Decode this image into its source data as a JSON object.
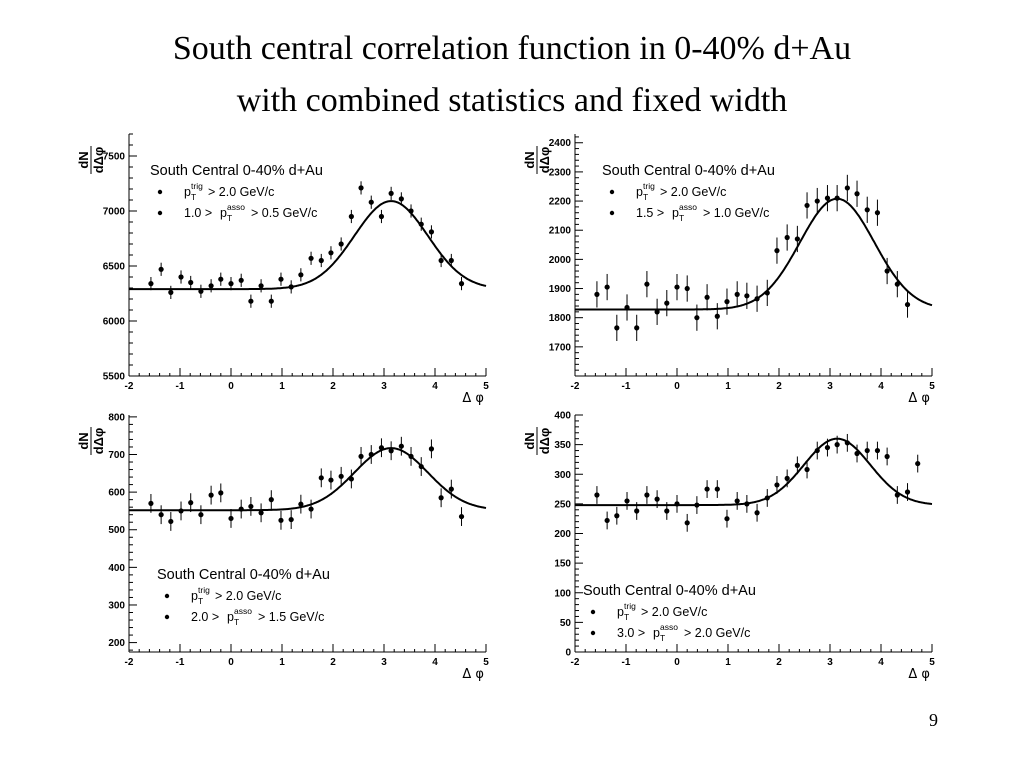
{
  "slide": {
    "title_line1": "South central correlation function in 0-40% d+Au",
    "title_line2": "with combined statistics and fixed width",
    "page_number": "9"
  },
  "chart_data": [
    {
      "type": "scatter",
      "fit": "gaussian",
      "legend": {
        "title": "South Central 0-40% d+Au",
        "entry1": {
          "p": "p",
          "sup": "trig",
          "sub": "T",
          "text": "> 2.0 GeV/c"
        },
        "entry2": {
          "prefix": "1.0 > ",
          "p": "p",
          "sup": "asso",
          "sub": "T",
          "text": "> 0.5 GeV/c"
        },
        "placement": "top-left"
      },
      "xlabel": "Δ φ",
      "ylabel_num": "dN",
      "ylabel_den": "dΔφ",
      "xlim": [
        -2,
        5
      ],
      "ylim": [
        5500,
        7700
      ],
      "x_ticks": [
        -2,
        -1,
        0,
        1,
        2,
        3,
        4,
        5
      ],
      "y_ticks": [
        5500,
        6000,
        6500,
        7000,
        7500
      ],
      "fit_params": {
        "baseline": 6290,
        "amplitude": 800,
        "center": 3.14,
        "sigma": 0.72
      },
      "points": [
        {
          "x": -1.57,
          "y": 6340,
          "err": 60
        },
        {
          "x": -1.37,
          "y": 6470,
          "err": 60
        },
        {
          "x": -1.18,
          "y": 6260,
          "err": 60
        },
        {
          "x": -0.98,
          "y": 6400,
          "err": 60
        },
        {
          "x": -0.79,
          "y": 6350,
          "err": 60
        },
        {
          "x": -0.59,
          "y": 6270,
          "err": 60
        },
        {
          "x": -0.39,
          "y": 6320,
          "err": 60
        },
        {
          "x": -0.2,
          "y": 6380,
          "err": 60
        },
        {
          "x": 0.0,
          "y": 6340,
          "err": 60
        },
        {
          "x": 0.2,
          "y": 6370,
          "err": 60
        },
        {
          "x": 0.39,
          "y": 6180,
          "err": 60
        },
        {
          "x": 0.59,
          "y": 6320,
          "err": 60
        },
        {
          "x": 0.79,
          "y": 6180,
          "err": 60
        },
        {
          "x": 0.98,
          "y": 6380,
          "err": 60
        },
        {
          "x": 1.18,
          "y": 6310,
          "err": 60
        },
        {
          "x": 1.37,
          "y": 6420,
          "err": 60
        },
        {
          "x": 1.57,
          "y": 6570,
          "err": 60
        },
        {
          "x": 1.77,
          "y": 6550,
          "err": 60
        },
        {
          "x": 1.96,
          "y": 6620,
          "err": 60
        },
        {
          "x": 2.16,
          "y": 6700,
          "err": 60
        },
        {
          "x": 2.36,
          "y": 6950,
          "err": 60
        },
        {
          "x": 2.55,
          "y": 7210,
          "err": 60
        },
        {
          "x": 2.75,
          "y": 7080,
          "err": 60
        },
        {
          "x": 2.95,
          "y": 6950,
          "err": 60
        },
        {
          "x": 3.14,
          "y": 7160,
          "err": 60
        },
        {
          "x": 3.34,
          "y": 7110,
          "err": 60
        },
        {
          "x": 3.53,
          "y": 7000,
          "err": 60
        },
        {
          "x": 3.73,
          "y": 6880,
          "err": 60
        },
        {
          "x": 3.93,
          "y": 6810,
          "err": 60
        },
        {
          "x": 4.12,
          "y": 6550,
          "err": 60
        },
        {
          "x": 4.32,
          "y": 6550,
          "err": 60
        },
        {
          "x": 4.52,
          "y": 6340,
          "err": 60
        }
      ]
    },
    {
      "type": "scatter",
      "fit": "gaussian",
      "legend": {
        "title": "South Central 0-40% d+Au",
        "entry1": {
          "p": "p",
          "sup": "trig",
          "sub": "T",
          "text": "> 2.0 GeV/c"
        },
        "entry2": {
          "prefix": "1.5 > ",
          "p": "p",
          "sup": "asso",
          "sub": "T",
          "text": "> 1.0 GeV/c"
        },
        "placement": "top-left"
      },
      "xlabel": "Δ φ",
      "ylabel_num": "dN",
      "ylabel_den": "dΔφ",
      "xlim": [
        -2,
        5
      ],
      "ylim": [
        1600,
        2430
      ],
      "x_ticks": [
        -2,
        -1,
        0,
        1,
        2,
        3,
        4,
        5
      ],
      "y_ticks": [
        1700,
        1800,
        1900,
        2000,
        2100,
        2200,
        2300,
        2400
      ],
      "fit_params": {
        "baseline": 1828,
        "amplitude": 380,
        "center": 3.14,
        "sigma": 0.73
      },
      "points": [
        {
          "x": -1.57,
          "y": 1880,
          "err": 45
        },
        {
          "x": -1.37,
          "y": 1905,
          "err": 45
        },
        {
          "x": -1.18,
          "y": 1765,
          "err": 45
        },
        {
          "x": -0.98,
          "y": 1835,
          "err": 45
        },
        {
          "x": -0.79,
          "y": 1765,
          "err": 45
        },
        {
          "x": -0.59,
          "y": 1915,
          "err": 45
        },
        {
          "x": -0.39,
          "y": 1820,
          "err": 45
        },
        {
          "x": -0.2,
          "y": 1850,
          "err": 45
        },
        {
          "x": 0.0,
          "y": 1905,
          "err": 45
        },
        {
          "x": 0.2,
          "y": 1900,
          "err": 45
        },
        {
          "x": 0.39,
          "y": 1800,
          "err": 45
        },
        {
          "x": 0.59,
          "y": 1870,
          "err": 45
        },
        {
          "x": 0.79,
          "y": 1805,
          "err": 45
        },
        {
          "x": 0.98,
          "y": 1855,
          "err": 45
        },
        {
          "x": 1.18,
          "y": 1880,
          "err": 45
        },
        {
          "x": 1.37,
          "y": 1875,
          "err": 45
        },
        {
          "x": 1.57,
          "y": 1865,
          "err": 45
        },
        {
          "x": 1.77,
          "y": 1885,
          "err": 45
        },
        {
          "x": 1.96,
          "y": 2030,
          "err": 45
        },
        {
          "x": 2.16,
          "y": 2075,
          "err": 45
        },
        {
          "x": 2.36,
          "y": 2070,
          "err": 45
        },
        {
          "x": 2.55,
          "y": 2185,
          "err": 45
        },
        {
          "x": 2.75,
          "y": 2200,
          "err": 45
        },
        {
          "x": 2.95,
          "y": 2210,
          "err": 45
        },
        {
          "x": 3.14,
          "y": 2210,
          "err": 45
        },
        {
          "x": 3.34,
          "y": 2245,
          "err": 45
        },
        {
          "x": 3.53,
          "y": 2225,
          "err": 45
        },
        {
          "x": 3.73,
          "y": 2170,
          "err": 45
        },
        {
          "x": 3.93,
          "y": 2160,
          "err": 45
        },
        {
          "x": 4.12,
          "y": 1960,
          "err": 45
        },
        {
          "x": 4.32,
          "y": 1915,
          "err": 45
        },
        {
          "x": 4.52,
          "y": 1845,
          "err": 45
        }
      ]
    },
    {
      "type": "scatter",
      "fit": "gaussian",
      "legend": {
        "title": "South Central 0-40% d+Au",
        "entry1": {
          "p": "p",
          "sup": "trig",
          "sub": "T",
          "text": "> 2.0 GeV/c"
        },
        "entry2": {
          "prefix": "2.0 > ",
          "p": "p",
          "sup": "asso",
          "sub": "T",
          "text": "> 1.5 GeV/c"
        },
        "placement": "bottom-left"
      },
      "xlabel": "Δ φ",
      "ylabel_num": "dN",
      "ylabel_den": "dΔφ",
      "xlim": [
        -2,
        5
      ],
      "ylim": [
        175,
        805
      ],
      "x_ticks": [
        -2,
        -1,
        0,
        1,
        2,
        3,
        4,
        5
      ],
      "y_ticks": [
        200,
        300,
        400,
        500,
        600,
        700,
        800
      ],
      "fit_params": {
        "baseline": 552,
        "amplitude": 165,
        "center": 3.14,
        "sigma": 0.72
      },
      "points": [
        {
          "x": -1.57,
          "y": 570,
          "err": 25
        },
        {
          "x": -1.37,
          "y": 540,
          "err": 25
        },
        {
          "x": -1.18,
          "y": 522,
          "err": 25
        },
        {
          "x": -0.98,
          "y": 550,
          "err": 25
        },
        {
          "x": -0.79,
          "y": 572,
          "err": 25
        },
        {
          "x": -0.59,
          "y": 540,
          "err": 25
        },
        {
          "x": -0.39,
          "y": 592,
          "err": 25
        },
        {
          "x": -0.2,
          "y": 598,
          "err": 25
        },
        {
          "x": 0.0,
          "y": 530,
          "err": 25
        },
        {
          "x": 0.2,
          "y": 555,
          "err": 25
        },
        {
          "x": 0.39,
          "y": 562,
          "err": 25
        },
        {
          "x": 0.59,
          "y": 545,
          "err": 25
        },
        {
          "x": 0.79,
          "y": 580,
          "err": 25
        },
        {
          "x": 0.98,
          "y": 525,
          "err": 25
        },
        {
          "x": 1.18,
          "y": 527,
          "err": 25
        },
        {
          "x": 1.37,
          "y": 568,
          "err": 25
        },
        {
          "x": 1.57,
          "y": 555,
          "err": 25
        },
        {
          "x": 1.77,
          "y": 638,
          "err": 25
        },
        {
          "x": 1.96,
          "y": 632,
          "err": 25
        },
        {
          "x": 2.16,
          "y": 642,
          "err": 25
        },
        {
          "x": 2.36,
          "y": 635,
          "err": 25
        },
        {
          "x": 2.55,
          "y": 695,
          "err": 25
        },
        {
          "x": 2.75,
          "y": 700,
          "err": 25
        },
        {
          "x": 2.95,
          "y": 718,
          "err": 25
        },
        {
          "x": 3.14,
          "y": 710,
          "err": 25
        },
        {
          "x": 3.34,
          "y": 722,
          "err": 25
        },
        {
          "x": 3.53,
          "y": 695,
          "err": 25
        },
        {
          "x": 3.73,
          "y": 668,
          "err": 25
        },
        {
          "x": 3.93,
          "y": 715,
          "err": 25
        },
        {
          "x": 4.12,
          "y": 585,
          "err": 25
        },
        {
          "x": 4.32,
          "y": 608,
          "err": 25
        },
        {
          "x": 4.52,
          "y": 535,
          "err": 25
        }
      ]
    },
    {
      "type": "scatter",
      "fit": "gaussian",
      "legend": {
        "title": "South Central 0-40% d+Au",
        "entry1": {
          "p": "p",
          "sup": "trig",
          "sub": "T",
          "text": "> 2.0 GeV/c"
        },
        "entry2": {
          "prefix": "3.0 > ",
          "p": "p",
          "sup": "asso",
          "sub": "T",
          "text": "> 2.0 GeV/c"
        },
        "placement": "bottom-left"
      },
      "xlabel": "Δ φ",
      "ylabel_num": "dN",
      "ylabel_den": "dΔφ",
      "xlim": [
        -2,
        5
      ],
      "ylim": [
        0,
        400
      ],
      "x_ticks": [
        -2,
        -1,
        0,
        1,
        2,
        3,
        4,
        5
      ],
      "y_ticks": [
        0,
        50,
        100,
        150,
        200,
        250,
        300,
        350,
        400
      ],
      "fit_params": {
        "baseline": 248,
        "amplitude": 112,
        "center": 3.14,
        "sigma": 0.65
      },
      "points": [
        {
          "x": -1.57,
          "y": 265,
          "err": 15
        },
        {
          "x": -1.37,
          "y": 222,
          "err": 15
        },
        {
          "x": -1.18,
          "y": 230,
          "err": 15
        },
        {
          "x": -0.98,
          "y": 255,
          "err": 15
        },
        {
          "x": -0.79,
          "y": 238,
          "err": 15
        },
        {
          "x": -0.59,
          "y": 265,
          "err": 15
        },
        {
          "x": -0.39,
          "y": 258,
          "err": 15
        },
        {
          "x": -0.2,
          "y": 238,
          "err": 15
        },
        {
          "x": 0.0,
          "y": 250,
          "err": 15
        },
        {
          "x": 0.2,
          "y": 218,
          "err": 15
        },
        {
          "x": 0.39,
          "y": 248,
          "err": 15
        },
        {
          "x": 0.59,
          "y": 275,
          "err": 15
        },
        {
          "x": 0.79,
          "y": 275,
          "err": 15
        },
        {
          "x": 0.98,
          "y": 225,
          "err": 15
        },
        {
          "x": 1.18,
          "y": 255,
          "err": 15
        },
        {
          "x": 1.37,
          "y": 250,
          "err": 15
        },
        {
          "x": 1.57,
          "y": 235,
          "err": 15
        },
        {
          "x": 1.77,
          "y": 260,
          "err": 15
        },
        {
          "x": 1.96,
          "y": 282,
          "err": 15
        },
        {
          "x": 2.16,
          "y": 293,
          "err": 15
        },
        {
          "x": 2.36,
          "y": 315,
          "err": 15
        },
        {
          "x": 2.55,
          "y": 308,
          "err": 15
        },
        {
          "x": 2.75,
          "y": 340,
          "err": 15
        },
        {
          "x": 2.95,
          "y": 345,
          "err": 15
        },
        {
          "x": 3.14,
          "y": 350,
          "err": 15
        },
        {
          "x": 3.34,
          "y": 353,
          "err": 15
        },
        {
          "x": 3.53,
          "y": 335,
          "err": 15
        },
        {
          "x": 3.73,
          "y": 340,
          "err": 15
        },
        {
          "x": 3.93,
          "y": 340,
          "err": 15
        },
        {
          "x": 4.12,
          "y": 330,
          "err": 15
        },
        {
          "x": 4.32,
          "y": 265,
          "err": 15
        },
        {
          "x": 4.52,
          "y": 270,
          "err": 15
        },
        {
          "x": 4.72,
          "y": 318,
          "err": 15
        }
      ]
    }
  ]
}
